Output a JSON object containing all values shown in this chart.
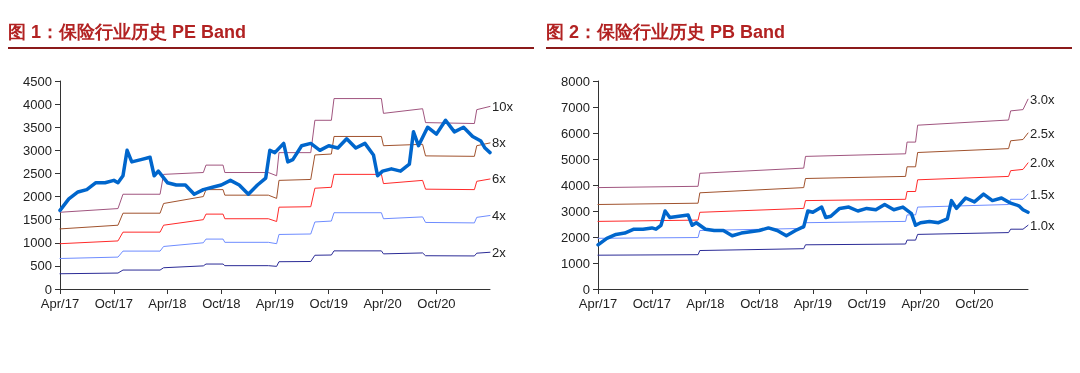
{
  "chart_data": [
    {
      "type": "line",
      "title": "图 1：保险行业历史 PE Band",
      "legend": false,
      "grid": false,
      "marker": "none",
      "line_style": "solid",
      "xlim": [
        "2017-04-01",
        "2021-04-01"
      ],
      "xticks": [
        {
          "value": "2017-04-01",
          "label": "Apr/17"
        },
        {
          "value": "2017-10-01",
          "label": "Oct/17"
        },
        {
          "value": "2018-04-01",
          "label": "Apr/18"
        },
        {
          "value": "2018-10-01",
          "label": "Oct/18"
        },
        {
          "value": "2019-04-01",
          "label": "Apr/19"
        },
        {
          "value": "2019-10-01",
          "label": "Oct/19"
        },
        {
          "value": "2020-04-01",
          "label": "Apr/20"
        },
        {
          "value": "2020-10-01",
          "label": "Oct/20"
        }
      ],
      "ylim": [
        0,
        4500
      ],
      "yticks": [
        0,
        500,
        1000,
        1500,
        2000,
        2500,
        3000,
        3500,
        4000,
        4500
      ],
      "series": [
        {
          "name": "10x",
          "color": "#a0557f",
          "x": [
            "2017-04-01",
            "2017-10-15",
            "2017-11-01",
            "2018-03-07",
            "2018-03-19",
            "2018-08-01",
            "2018-08-10",
            "2018-10-07",
            "2018-10-13",
            "2019-03-10",
            "2019-04-07",
            "2019-04-15",
            "2019-08-01",
            "2019-08-15",
            "2019-10-10",
            "2019-10-19",
            "2020-03-28",
            "2020-04-04",
            "2020-08-15",
            "2020-08-25",
            "2021-02-07",
            "2021-02-15",
            "2021-04-01"
          ],
          "values": [
            1660,
            1740,
            2050,
            2050,
            2480,
            2520,
            2680,
            2680,
            2520,
            2520,
            2450,
            2950,
            2950,
            3650,
            3650,
            4120,
            4120,
            3800,
            3900,
            3600,
            3580,
            3880,
            3950
          ]
        },
        {
          "name": "8x",
          "color": "#a0522d",
          "x": [
            "2017-04-01",
            "2017-10-15",
            "2017-11-01",
            "2018-03-07",
            "2018-03-19",
            "2018-08-01",
            "2018-08-10",
            "2018-10-07",
            "2018-10-13",
            "2019-03-10",
            "2019-04-07",
            "2019-04-15",
            "2019-08-01",
            "2019-08-15",
            "2019-10-10",
            "2019-10-19",
            "2020-03-28",
            "2020-04-04",
            "2020-08-15",
            "2020-08-25",
            "2021-02-07",
            "2021-02-15",
            "2021-04-01"
          ],
          "values": [
            1300,
            1380,
            1640,
            1640,
            1850,
            2000,
            2150,
            2150,
            2030,
            2030,
            1960,
            2350,
            2370,
            2900,
            2920,
            3300,
            3300,
            3100,
            3130,
            2880,
            2870,
            3100,
            3160
          ]
        },
        {
          "name": "6x",
          "color": "#ff2a2a",
          "x": [
            "2017-04-01",
            "2017-10-15",
            "2017-11-01",
            "2018-03-07",
            "2018-03-19",
            "2018-08-01",
            "2018-08-10",
            "2018-10-07",
            "2018-10-13",
            "2019-03-10",
            "2019-04-07",
            "2019-04-15",
            "2019-08-01",
            "2019-08-15",
            "2019-10-10",
            "2019-10-19",
            "2020-03-28",
            "2020-04-04",
            "2020-08-15",
            "2020-08-25",
            "2021-02-07",
            "2021-02-15",
            "2021-04-01"
          ],
          "values": [
            980,
            1040,
            1230,
            1230,
            1380,
            1500,
            1620,
            1620,
            1520,
            1520,
            1460,
            1770,
            1780,
            2180,
            2200,
            2480,
            2480,
            2280,
            2350,
            2160,
            2150,
            2330,
            2380
          ]
        },
        {
          "name": "4x",
          "color": "#6e8cff",
          "x": [
            "2017-04-01",
            "2017-10-15",
            "2017-11-01",
            "2018-03-07",
            "2018-03-19",
            "2018-08-01",
            "2018-08-10",
            "2018-10-07",
            "2018-10-13",
            "2019-03-10",
            "2019-04-07",
            "2019-04-15",
            "2019-08-01",
            "2019-08-15",
            "2019-10-10",
            "2019-10-19",
            "2020-03-28",
            "2020-04-04",
            "2020-08-15",
            "2020-08-25",
            "2021-02-07",
            "2021-02-15",
            "2021-04-01"
          ],
          "values": [
            660,
            690,
            820,
            820,
            920,
            1000,
            1080,
            1080,
            1010,
            1010,
            980,
            1180,
            1190,
            1450,
            1470,
            1650,
            1650,
            1520,
            1560,
            1440,
            1430,
            1550,
            1590
          ]
        },
        {
          "name": "2x",
          "color": "#2b2b96",
          "x": [
            "2017-04-01",
            "2017-10-15",
            "2017-11-01",
            "2018-03-07",
            "2018-03-19",
            "2018-08-01",
            "2018-08-10",
            "2018-10-07",
            "2018-10-13",
            "2019-03-10",
            "2019-04-07",
            "2019-04-15",
            "2019-08-01",
            "2019-08-15",
            "2019-10-10",
            "2019-10-19",
            "2020-03-28",
            "2020-04-04",
            "2020-08-15",
            "2020-08-25",
            "2021-02-07",
            "2021-02-15",
            "2021-04-01"
          ],
          "values": [
            330,
            345,
            410,
            410,
            460,
            500,
            540,
            540,
            505,
            505,
            490,
            590,
            595,
            730,
            735,
            825,
            825,
            760,
            780,
            720,
            715,
            775,
            795
          ]
        },
        {
          "color": "#0066cc",
          "x": [
            "2017-04-01",
            "2017-05-01",
            "2017-06-01",
            "2017-07-01",
            "2017-08-01",
            "2017-09-01",
            "2017-10-01",
            "2017-10-15",
            "2017-11-01",
            "2017-11-15",
            "2017-12-01",
            "2018-01-01",
            "2018-02-01",
            "2018-02-15",
            "2018-03-01",
            "2018-04-01",
            "2018-05-01",
            "2018-06-01",
            "2018-07-01",
            "2018-08-01",
            "2018-09-01",
            "2018-10-01",
            "2018-11-01",
            "2018-12-01",
            "2019-01-01",
            "2019-02-01",
            "2019-03-01",
            "2019-03-15",
            "2019-04-01",
            "2019-05-01",
            "2019-05-15",
            "2019-06-01",
            "2019-07-01",
            "2019-08-01",
            "2019-09-01",
            "2019-10-01",
            "2019-11-01",
            "2019-12-01",
            "2020-01-01",
            "2020-02-01",
            "2020-03-01",
            "2020-03-15",
            "2020-04-01",
            "2020-05-01",
            "2020-06-01",
            "2020-07-01",
            "2020-07-15",
            "2020-08-01",
            "2020-09-01",
            "2020-10-01",
            "2020-11-01",
            "2020-12-01",
            "2021-01-01",
            "2021-02-01",
            "2021-03-01",
            "2021-03-15",
            "2021-04-01"
          ],
          "values": [
            1700,
            1950,
            2100,
            2150,
            2300,
            2300,
            2350,
            2300,
            2450,
            3000,
            2750,
            2800,
            2850,
            2450,
            2550,
            2300,
            2250,
            2250,
            2050,
            2150,
            2200,
            2250,
            2350,
            2250,
            2050,
            2250,
            2400,
            3000,
            2950,
            3150,
            2750,
            2800,
            3100,
            3150,
            3000,
            3100,
            3050,
            3250,
            3050,
            3150,
            2900,
            2450,
            2550,
            2600,
            2550,
            2700,
            3400,
            3100,
            3500,
            3350,
            3650,
            3400,
            3500,
            3300,
            3200,
            3050,
            2950
          ]
        }
      ]
    },
    {
      "type": "line",
      "title": "图 2：保险行业历史 PB Band",
      "legend": false,
      "grid": false,
      "marker": "none",
      "line_style": "solid",
      "xlim": [
        "2017-04-01",
        "2021-04-01"
      ],
      "xticks": [
        {
          "value": "2017-04-01",
          "label": "Apr/17"
        },
        {
          "value": "2017-10-01",
          "label": "Oct/17"
        },
        {
          "value": "2018-04-01",
          "label": "Apr/18"
        },
        {
          "value": "2018-10-01",
          "label": "Oct/18"
        },
        {
          "value": "2019-04-01",
          "label": "Apr/19"
        },
        {
          "value": "2019-10-01",
          "label": "Oct/19"
        },
        {
          "value": "2020-04-01",
          "label": "Apr/20"
        },
        {
          "value": "2020-10-01",
          "label": "Oct/20"
        }
      ],
      "ylim": [
        0,
        8000
      ],
      "yticks": [
        0,
        1000,
        2000,
        3000,
        4000,
        5000,
        6000,
        7000,
        8000
      ],
      "series": [
        {
          "name": "3.0x",
          "color": "#a0557f",
          "x": [
            "2017-04-01",
            "2018-03-07",
            "2018-03-13",
            "2019-03-01",
            "2019-03-07",
            "2020-02-10",
            "2020-02-15",
            "2020-03-15",
            "2020-03-22",
            "2021-01-25",
            "2021-02-01",
            "2021-03-15",
            "2021-04-01"
          ],
          "values": [
            3900,
            3950,
            4450,
            4650,
            5100,
            5200,
            5650,
            5650,
            6300,
            6500,
            6850,
            6900,
            7300
          ]
        },
        {
          "name": "2.5x",
          "color": "#a0522d",
          "x": [
            "2017-04-01",
            "2018-03-07",
            "2018-03-13",
            "2019-03-01",
            "2019-03-07",
            "2020-02-10",
            "2020-02-15",
            "2020-03-15",
            "2020-03-22",
            "2021-01-25",
            "2021-02-01",
            "2021-03-15",
            "2021-04-01"
          ],
          "values": [
            3250,
            3300,
            3700,
            3900,
            4250,
            4330,
            4700,
            4700,
            5250,
            5400,
            5700,
            5750,
            6000
          ]
        },
        {
          "name": "2.0x",
          "color": "#ff2a2a",
          "x": [
            "2017-04-01",
            "2018-03-07",
            "2018-03-13",
            "2019-03-01",
            "2019-03-07",
            "2020-02-10",
            "2020-02-15",
            "2020-03-15",
            "2020-03-22",
            "2021-01-25",
            "2021-02-01",
            "2021-03-15",
            "2021-04-01"
          ],
          "values": [
            2600,
            2650,
            2950,
            3100,
            3400,
            3450,
            3750,
            3750,
            4200,
            4330,
            4550,
            4600,
            4850
          ]
        },
        {
          "name": "1.5x",
          "color": "#6e8cff",
          "x": [
            "2017-04-01",
            "2018-03-07",
            "2018-03-13",
            "2019-03-01",
            "2019-03-07",
            "2020-02-10",
            "2020-02-15",
            "2020-03-15",
            "2020-03-22",
            "2021-01-25",
            "2021-02-01",
            "2021-03-15",
            "2021-04-01"
          ],
          "values": [
            1950,
            1980,
            2250,
            2330,
            2550,
            2600,
            2850,
            2850,
            3150,
            3250,
            3450,
            3450,
            3650
          ]
        },
        {
          "name": "1.0x",
          "color": "#2b2b96",
          "x": [
            "2017-04-01",
            "2018-03-07",
            "2018-03-13",
            "2019-03-01",
            "2019-03-07",
            "2020-02-10",
            "2020-02-15",
            "2020-03-15",
            "2020-03-22",
            "2021-01-25",
            "2021-02-01",
            "2021-03-15",
            "2021-04-01"
          ],
          "values": [
            1300,
            1320,
            1480,
            1550,
            1700,
            1730,
            1880,
            1880,
            2100,
            2170,
            2300,
            2300,
            2450
          ]
        },
        {
          "color": "#0066cc",
          "x": [
            "2017-04-01",
            "2017-05-01",
            "2017-06-01",
            "2017-07-01",
            "2017-08-01",
            "2017-09-01",
            "2017-10-01",
            "2017-10-15",
            "2017-11-01",
            "2017-11-15",
            "2017-12-01",
            "2018-01-01",
            "2018-02-01",
            "2018-02-15",
            "2018-03-01",
            "2018-04-01",
            "2018-05-01",
            "2018-06-01",
            "2018-07-01",
            "2018-08-01",
            "2018-09-01",
            "2018-10-01",
            "2018-11-01",
            "2018-12-01",
            "2019-01-01",
            "2019-02-01",
            "2019-03-01",
            "2019-03-15",
            "2019-04-01",
            "2019-05-01",
            "2019-05-15",
            "2019-06-01",
            "2019-07-01",
            "2019-08-01",
            "2019-09-01",
            "2019-10-01",
            "2019-11-01",
            "2019-12-01",
            "2020-01-01",
            "2020-02-01",
            "2020-03-01",
            "2020-03-15",
            "2020-04-01",
            "2020-05-01",
            "2020-06-01",
            "2020-07-01",
            "2020-07-15",
            "2020-08-01",
            "2020-09-01",
            "2020-10-01",
            "2020-11-01",
            "2020-12-01",
            "2021-01-01",
            "2021-02-01",
            "2021-03-01",
            "2021-03-15",
            "2021-04-01"
          ],
          "values": [
            1700,
            1950,
            2100,
            2150,
            2300,
            2300,
            2350,
            2300,
            2450,
            3000,
            2750,
            2800,
            2850,
            2450,
            2550,
            2300,
            2250,
            2250,
            2050,
            2150,
            2200,
            2250,
            2350,
            2250,
            2050,
            2250,
            2400,
            3000,
            2950,
            3150,
            2750,
            2800,
            3100,
            3150,
            3000,
            3100,
            3050,
            3250,
            3050,
            3150,
            2900,
            2450,
            2550,
            2600,
            2550,
            2700,
            3400,
            3100,
            3500,
            3350,
            3650,
            3400,
            3500,
            3300,
            3200,
            3050,
            2950
          ]
        }
      ]
    }
  ]
}
